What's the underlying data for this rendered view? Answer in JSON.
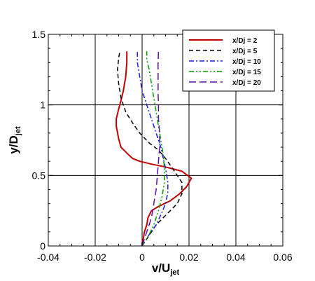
{
  "chart_data": {
    "type": "line",
    "xlabel": "v/U",
    "xlabel_sub": "jet",
    "ylabel": "y/D",
    "ylabel_sub": "jet",
    "xlim": [
      -0.04,
      0.06
    ],
    "ylim": [
      0,
      1.5
    ],
    "xticks": [
      "-0.04",
      "-0.02",
      "0",
      "0.02",
      "0.04",
      "0.06"
    ],
    "yticks": [
      "0",
      "0.5",
      "1",
      "1.5"
    ],
    "grid": "major",
    "legend_position": "top-right",
    "series": [
      {
        "name": "x/Dj = 2",
        "color": "#c00000",
        "dash": "solid",
        "points": [
          [
            0.0,
            0.0
          ],
          [
            0.0,
            0.02
          ],
          [
            0.0005,
            0.05
          ],
          [
            0.001,
            0.1
          ],
          [
            0.002,
            0.15
          ],
          [
            0.0025,
            0.2
          ],
          [
            0.004,
            0.25
          ],
          [
            0.007,
            0.28
          ],
          [
            0.012,
            0.32
          ],
          [
            0.016,
            0.37
          ],
          [
            0.019,
            0.42
          ],
          [
            0.021,
            0.48
          ],
          [
            0.017,
            0.53
          ],
          [
            0.01,
            0.56
          ],
          [
            0.004,
            0.58
          ],
          [
            -0.001,
            0.6
          ],
          [
            -0.004,
            0.62
          ],
          [
            -0.006,
            0.65
          ],
          [
            -0.009,
            0.7
          ],
          [
            -0.01,
            0.76
          ],
          [
            -0.011,
            0.85
          ],
          [
            -0.011,
            0.9
          ],
          [
            -0.01,
            0.97
          ],
          [
            -0.009,
            1.03
          ],
          [
            -0.008,
            1.1
          ],
          [
            -0.007,
            1.2
          ],
          [
            -0.0065,
            1.3
          ],
          [
            -0.0065,
            1.38
          ]
        ]
      },
      {
        "name": "x/Dj = 5",
        "color": "#000000",
        "dash": "dashed",
        "points": [
          [
            0.0,
            0.0
          ],
          [
            0.002,
            0.05
          ],
          [
            0.004,
            0.1
          ],
          [
            0.006,
            0.15
          ],
          [
            0.009,
            0.2
          ],
          [
            0.012,
            0.25
          ],
          [
            0.015,
            0.3
          ],
          [
            0.017,
            0.37
          ],
          [
            0.017,
            0.45
          ],
          [
            0.013,
            0.55
          ],
          [
            0.01,
            0.62
          ],
          [
            0.007,
            0.68
          ],
          [
            0.003,
            0.73
          ],
          [
            -0.001,
            0.8
          ],
          [
            -0.004,
            0.87
          ],
          [
            -0.007,
            0.95
          ],
          [
            -0.009,
            1.05
          ],
          [
            -0.01,
            1.15
          ],
          [
            -0.0105,
            1.25
          ],
          [
            -0.01,
            1.33
          ],
          [
            -0.0095,
            1.38
          ]
        ]
      },
      {
        "name": "x/Dj = 10",
        "color": "#1c1cd8",
        "dash": "dashdot",
        "points": [
          [
            0.0,
            0.0
          ],
          [
            0.003,
            0.08
          ],
          [
            0.006,
            0.15
          ],
          [
            0.008,
            0.22
          ],
          [
            0.01,
            0.3
          ],
          [
            0.011,
            0.38
          ],
          [
            0.011,
            0.45
          ],
          [
            0.01,
            0.55
          ],
          [
            0.009,
            0.62
          ],
          [
            0.008,
            0.7
          ],
          [
            0.006,
            0.8
          ],
          [
            0.004,
            0.9
          ],
          [
            0.002,
            1.0
          ],
          [
            0.0,
            1.1
          ],
          [
            -0.001,
            1.2
          ],
          [
            -0.002,
            1.3
          ],
          [
            -0.002,
            1.38
          ]
        ]
      },
      {
        "name": "x/Dj = 15",
        "color": "#00a000",
        "dash": "dashdotdot",
        "points": [
          [
            0.0,
            0.0
          ],
          [
            0.003,
            0.08
          ],
          [
            0.005,
            0.15
          ],
          [
            0.007,
            0.25
          ],
          [
            0.0085,
            0.35
          ],
          [
            0.0095,
            0.45
          ],
          [
            0.0095,
            0.55
          ],
          [
            0.009,
            0.65
          ],
          [
            0.008,
            0.75
          ],
          [
            0.007,
            0.85
          ],
          [
            0.006,
            0.95
          ],
          [
            0.005,
            1.05
          ],
          [
            0.004,
            1.15
          ],
          [
            0.003,
            1.25
          ],
          [
            0.002,
            1.32
          ],
          [
            0.002,
            1.38
          ]
        ]
      },
      {
        "name": "x/Dj = 20",
        "color": "#5b0fb0",
        "dash": "longdash",
        "points": [
          [
            0.0,
            0.0
          ],
          [
            0.002,
            0.1
          ],
          [
            0.004,
            0.2
          ],
          [
            0.005,
            0.3
          ],
          [
            0.006,
            0.4
          ],
          [
            0.0065,
            0.5
          ],
          [
            0.007,
            0.6
          ],
          [
            0.0075,
            0.7
          ],
          [
            0.0075,
            0.8
          ],
          [
            0.007,
            0.9
          ],
          [
            0.007,
            1.0
          ],
          [
            0.0068,
            1.1
          ],
          [
            0.0068,
            1.2
          ],
          [
            0.0068,
            1.3
          ],
          [
            0.007,
            1.38
          ]
        ]
      }
    ]
  }
}
